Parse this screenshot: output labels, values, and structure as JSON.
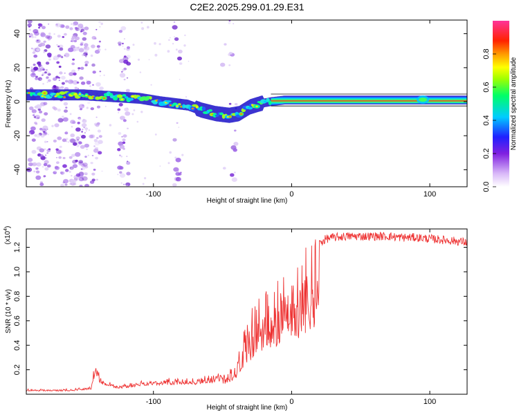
{
  "title": "C2E2.2025.299.01.29.E31",
  "chart_data": [
    {
      "type": "heatmap",
      "name": "spectrogram",
      "xlabel": "Height of straight line (km)",
      "ylabel": "Frequency (Hz)",
      "xlim": [
        -192,
        127
      ],
      "ylim": [
        -50,
        48
      ],
      "xticks": [
        -100,
        0,
        100
      ],
      "yticks": [
        -40,
        -20,
        0,
        20,
        40
      ],
      "grid": false,
      "ridge": {
        "x": [
          -190,
          -170,
          -150,
          -130,
          -110,
          -95,
          -85,
          -75,
          -65,
          -55,
          -45,
          -38,
          -30,
          -22,
          -15,
          -5,
          0,
          10,
          30,
          60,
          90,
          100,
          127
        ],
        "freq_hz": [
          4,
          4,
          4,
          3,
          2,
          0,
          -1,
          -2,
          -5,
          -7,
          -8,
          -7,
          -3,
          -1,
          0,
          1,
          1,
          1,
          1,
          1,
          1,
          1,
          1
        ]
      },
      "colorbar": {
        "label": "Normalized spectral amplitude",
        "ticks": [
          "0.0",
          "0.2",
          "0.4",
          "0.6",
          "0.8"
        ],
        "tick_values": [
          0.0,
          0.2,
          0.4,
          0.6,
          0.8
        ],
        "range": [
          0,
          1
        ]
      }
    },
    {
      "type": "line",
      "name": "snr",
      "xlabel": "Height of straight line (km)",
      "ylabel": "SNR (10 * v/v)",
      "y_multiplier": "(x10",
      "y_multiplier_exp": "4",
      "xlim": [
        -192,
        127
      ],
      "ylim": [
        0,
        1.35
      ],
      "xticks": [
        -100,
        0,
        100
      ],
      "yticks": [
        0.2,
        0.4,
        0.6,
        0.8,
        1.0,
        1.2
      ],
      "ytick_labels": [
        "0.2",
        "0.4",
        "0.6",
        "0.8",
        "1.0",
        "1.2"
      ],
      "color": "#ee3333",
      "envelope": {
        "x": [
          -192,
          -160,
          -145,
          -142,
          -138,
          -125,
          -110,
          -90,
          -70,
          -55,
          -45,
          -40,
          -35,
          -30,
          -25,
          -20,
          -15,
          -10,
          -5,
          0,
          5,
          10,
          15,
          20,
          25,
          30,
          40,
          50,
          60,
          70,
          80,
          90,
          100,
          110,
          120,
          127
        ],
        "y": [
          0.04,
          0.04,
          0.06,
          0.26,
          0.12,
          0.07,
          0.1,
          0.12,
          0.12,
          0.15,
          0.2,
          0.3,
          0.45,
          0.6,
          0.72,
          0.78,
          0.82,
          0.85,
          0.9,
          0.95,
          1.0,
          1.08,
          1.17,
          1.23,
          1.27,
          1.28,
          1.29,
          1.29,
          1.29,
          1.29,
          1.28,
          1.28,
          1.27,
          1.26,
          1.25,
          1.24
        ]
      }
    }
  ]
}
